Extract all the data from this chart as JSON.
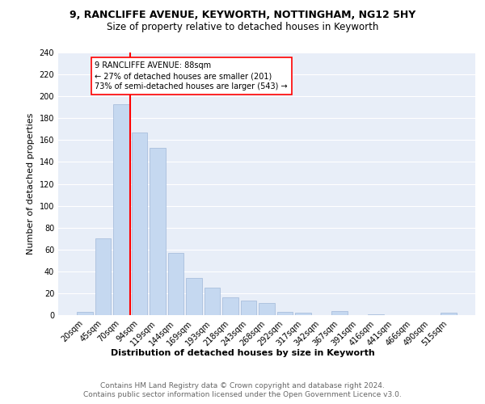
{
  "title1": "9, RANCLIFFE AVENUE, KEYWORTH, NOTTINGHAM, NG12 5HY",
  "title2": "Size of property relative to detached houses in Keyworth",
  "xlabel": "Distribution of detached houses by size in Keyworth",
  "ylabel": "Number of detached properties",
  "categories": [
    "20sqm",
    "45sqm",
    "70sqm",
    "94sqm",
    "119sqm",
    "144sqm",
    "169sqm",
    "193sqm",
    "218sqm",
    "243sqm",
    "268sqm",
    "292sqm",
    "317sqm",
    "342sqm",
    "367sqm",
    "391sqm",
    "416sqm",
    "441sqm",
    "466sqm",
    "490sqm",
    "515sqm"
  ],
  "values": [
    3,
    70,
    193,
    167,
    153,
    57,
    34,
    25,
    16,
    13,
    11,
    3,
    2,
    0,
    4,
    0,
    1,
    0,
    0,
    0,
    2
  ],
  "bar_color": "#c5d8f0",
  "bar_edgecolor": "#a0b8d8",
  "vline_color": "red",
  "vline_index": 2.5,
  "annotation_box_text": "9 RANCLIFFE AVENUE: 88sqm\n← 27% of detached houses are smaller (201)\n73% of semi-detached houses are larger (543) →",
  "ylim": [
    0,
    240
  ],
  "yticks": [
    0,
    20,
    40,
    60,
    80,
    100,
    120,
    140,
    160,
    180,
    200,
    220,
    240
  ],
  "background_color": "#e8eef8",
  "grid_color": "white",
  "footer_line1": "Contains HM Land Registry data © Crown copyright and database right 2024.",
  "footer_line2": "Contains public sector information licensed under the Open Government Licence v3.0.",
  "title1_fontsize": 9,
  "title2_fontsize": 8.5,
  "xlabel_fontsize": 8,
  "ylabel_fontsize": 8,
  "tick_fontsize": 7,
  "annotation_fontsize": 7,
  "footer_fontsize": 6.5
}
